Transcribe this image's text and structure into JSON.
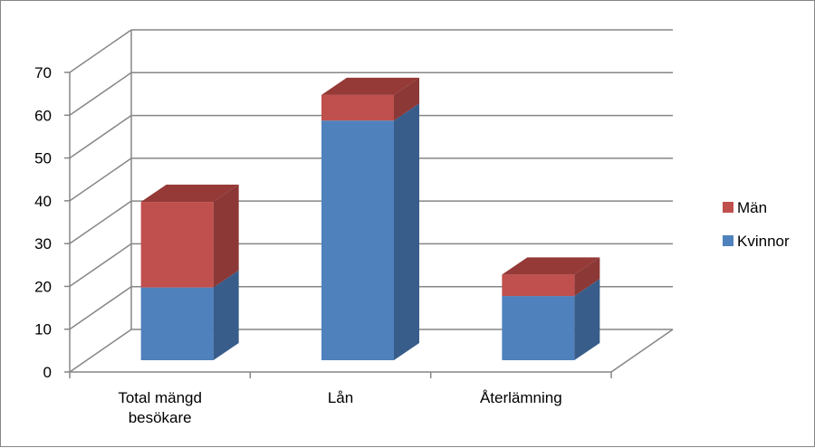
{
  "chart_data": {
    "type": "bar",
    "stacked": true,
    "three_d": true,
    "categories": [
      [
        "Total mängd",
        "besökare"
      ],
      [
        "Lån"
      ],
      [
        "Återlämning"
      ]
    ],
    "series": [
      {
        "name": "Kvinnor",
        "values": [
          17,
          56,
          15
        ],
        "color": "#4F81BD",
        "side_color": "#385D8A",
        "top_color": "#3F6796"
      },
      {
        "name": "Män",
        "values": [
          20,
          6,
          5
        ],
        "color": "#C0504D",
        "side_color": "#8C3836",
        "top_color": "#953A37"
      }
    ],
    "ylim": [
      0,
      70
    ],
    "yticks": [
      0,
      10,
      20,
      30,
      40,
      50,
      60,
      70
    ],
    "grid": true,
    "legend_position": "right",
    "legend_order": [
      "Män",
      "Kvinnor"
    ]
  }
}
